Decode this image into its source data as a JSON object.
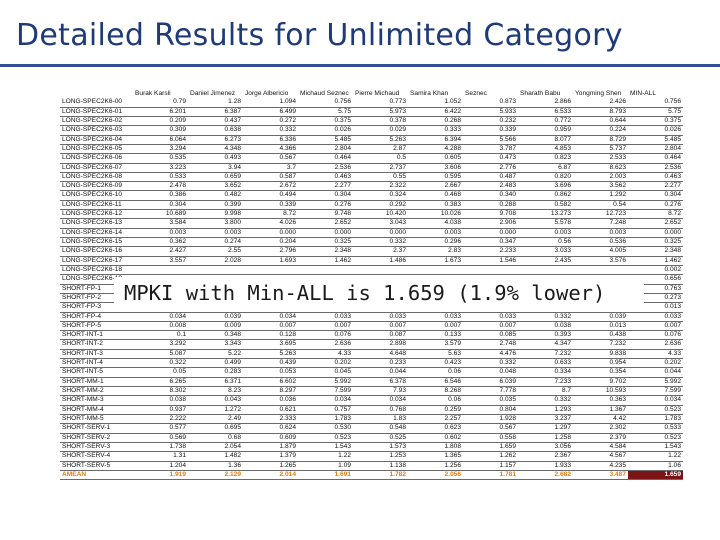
{
  "title": "Detailed Results for Unlimited Category",
  "callout": "MPKI with Min-ALL is 1.659 (1.9% lower)",
  "table": {
    "columns": [
      "",
      "Burak Karsli",
      "Daniel Jimenez",
      "Jorge Albericio",
      "Michaud Seznec",
      "Pierre Michaud",
      "Samira Khan",
      "Seznec",
      "Sharath Babu",
      "Yongming Shen",
      "MIN-ALL"
    ],
    "rows": [
      [
        "LONG-SPEC2K6-00",
        "0.79",
        "1.28",
        "1.094",
        "0.756",
        "0.773",
        "1.052",
        "0.873",
        "2.866",
        "2.426",
        "0.756"
      ],
      [
        "LONG-SPEC2K6-01",
        "6.201",
        "6.387",
        "6.499",
        "5.75",
        "5.973",
        "6.422",
        "5.933",
        "6.533",
        "8.793",
        "5.75"
      ],
      [
        "LONG-SPEC2K6-02",
        "0.209",
        "0.437",
        "0.272",
        "0.375",
        "0.378",
        "0.268",
        "0.232",
        "0.772",
        "0.644",
        "0.375"
      ],
      [
        "LONG-SPEC2K6-03",
        "0.309",
        "0.638",
        "0.332",
        "0.026",
        "0.029",
        "0.333",
        "0.339",
        "0.959",
        "0.224",
        "0.026"
      ],
      [
        "LONG-SPEC2K6-04",
        "6.064",
        "6.273",
        "6.336",
        "5.485",
        "5.263",
        "6.394",
        "5.566",
        "8.077",
        "8.729",
        "5.485"
      ],
      [
        "LONG-SPEC2K6-05",
        "3.294",
        "4.348",
        "4.366",
        "2.804",
        "2.87",
        "4.288",
        "3.787",
        "4.853",
        "5.737",
        "2.804"
      ],
      [
        "LONG-SPEC2K6-06",
        "0.535",
        "0.493",
        "0.567",
        "0.464",
        "0.5",
        "0.605",
        "0.473",
        "0.823",
        "2.533",
        "0.464"
      ],
      [
        "LONG-SPEC2K6-07",
        "3.223",
        "3.94",
        "3.7",
        "2.536",
        "2.737",
        "3.606",
        "2.776",
        "6.87",
        "8.623",
        "2.536"
      ],
      [
        "LONG-SPEC2K6-08",
        "0.533",
        "0.659",
        "0.587",
        "0.463",
        "0.55",
        "0.595",
        "0.487",
        "0.820",
        "2.003",
        "0.463"
      ],
      [
        "LONG-SPEC2K6-09",
        "2.478",
        "3.652",
        "2.672",
        "2.277",
        "2.322",
        "2.667",
        "2.483",
        "3.696",
        "3.562",
        "2.277"
      ],
      [
        "LONG-SPEC2K6-10",
        "0.386",
        "0.482",
        "0.494",
        "0.304",
        "0.324",
        "0.468",
        "0.340",
        "0.862",
        "1.292",
        "0.304"
      ],
      [
        "LONG-SPEC2K6-11",
        "0.304",
        "0.399",
        "0.339",
        "0.276",
        "0.292",
        "0.383",
        "0.288",
        "0.582",
        "0.54",
        "0.276"
      ],
      [
        "LONG-SPEC2K6-12",
        "10.689",
        "9.998",
        "8.72",
        "9.748",
        "10.420",
        "10.026",
        "9.708",
        "13.273",
        "12.723",
        "8.72"
      ],
      [
        "LONG-SPEC2K6-13",
        "3.584",
        "3.800",
        "4.026",
        "2.652",
        "3.043",
        "4.038",
        "2.906",
        "5.578",
        "7.248",
        "2.652"
      ],
      [
        "LONG-SPEC2K6-14",
        "0.003",
        "0.003",
        "0.000",
        "0.000",
        "0.000",
        "0.003",
        "0.000",
        "0.003",
        "0.003",
        "0.000"
      ],
      [
        "LONG-SPEC2K6-15",
        "0.362",
        "0.274",
        "0.204",
        "0.325",
        "0.332",
        "0.296",
        "0.347",
        "0.56",
        "0.536",
        "0.325"
      ],
      [
        "LONG-SPEC2K6-16",
        "2.427",
        "2.55",
        "2.796",
        "2.348",
        "2.37",
        "2.83",
        "2.233",
        "3.033",
        "4.005",
        "2.348"
      ],
      [
        "LONG-SPEC2K6-17",
        "3.557",
        "2.028",
        "1.693",
        "1.462",
        "1.486",
        "1.673",
        "1.546",
        "2.435",
        "3.576",
        "1.462"
      ],
      [
        "LONG-SPEC2K6-18",
        "",
        "",
        "",
        "",
        "",
        "",
        "",
        "",
        "",
        "0.002"
      ],
      [
        "LONG-SPEC2K6-19",
        "",
        "",
        "",
        "",
        "",
        "",
        "",
        "",
        "",
        "0.656"
      ],
      [
        "SHORT-FP-1",
        "",
        "",
        "",
        "",
        "",
        "",
        "",
        "",
        "",
        "0.763"
      ],
      [
        "SHORT-FP-2",
        "",
        "",
        "",
        "",
        "",
        "",
        "",
        "",
        "",
        "0.273"
      ],
      [
        "SHORT-FP-3",
        "0.034",
        "0.025",
        "0.013",
        "0.013",
        "0.013",
        "0.013",
        "0.013",
        "0.309",
        "0.042",
        "0.013"
      ],
      [
        "SHORT-FP-4",
        "0.034",
        "0.039",
        "0.034",
        "0.033",
        "0.033",
        "0.033",
        "0.033",
        "0.332",
        "0.039",
        "0.033"
      ],
      [
        "SHORT-FP-5",
        "0.008",
        "0.009",
        "0.007",
        "0.007",
        "0.007",
        "0.007",
        "0.007",
        "0.038",
        "0.013",
        "0.007"
      ],
      [
        "SHORT-INT-1",
        "0.1",
        "0.348",
        "0.128",
        "0.076",
        "0.087",
        "0.133",
        "0.085",
        "0.393",
        "0.438",
        "0.076"
      ],
      [
        "SHORT-INT-2",
        "3.292",
        "3.343",
        "3.695",
        "2.636",
        "2.898",
        "3.579",
        "2.748",
        "4.347",
        "7.232",
        "2.636"
      ],
      [
        "SHORT-INT-3",
        "5.087",
        "5.22",
        "5.263",
        "4.33",
        "4.648",
        "5.63",
        "4.476",
        "7.232",
        "9.838",
        "4.33"
      ],
      [
        "SHORT-INT-4",
        "0.322",
        "0.499",
        "0.439",
        "0.202",
        "0.233",
        "0.423",
        "0.332",
        "0.633",
        "0.954",
        "0.202"
      ],
      [
        "SHORT-INT-5",
        "0.05",
        "0.283",
        "0.053",
        "0.045",
        "0.044",
        "0.06",
        "0.048",
        "0.334",
        "0.354",
        "0.044"
      ],
      [
        "SHORT-MM-1",
        "6.265",
        "6.371",
        "6.602",
        "5.992",
        "6.378",
        "6.546",
        "6.039",
        "7.233",
        "9.702",
        "5.992"
      ],
      [
        "SHORT-MM-2",
        "8.302",
        "8.23",
        "8.297",
        "7.599",
        "7.93",
        "8.268",
        "7.778",
        "8.7",
        "10.593",
        "7.599"
      ],
      [
        "SHORT-MM-3",
        "0.038",
        "0.043",
        "0.036",
        "0.034",
        "0.034",
        "0.06",
        "0.035",
        "0.332",
        "0.363",
        "0.034"
      ],
      [
        "SHORT-MM-4",
        "0.937",
        "1.272",
        "0.621",
        "0.757",
        "0.768",
        "0.259",
        "0.804",
        "1.293",
        "1.367",
        "0.523"
      ],
      [
        "SHORT-MM-5",
        "2.222",
        "2.49",
        "2.333",
        "1.783",
        "1.83",
        "2.257",
        "1.928",
        "3.237",
        "4.42",
        "1.783"
      ],
      [
        "SHORT-SERV-1",
        "0.577",
        "0.695",
        "0.624",
        "0.530",
        "0.548",
        "0.623",
        "0.567",
        "1.297",
        "2.302",
        "0.533"
      ],
      [
        "SHORT-SERV-2",
        "0.569",
        "0.68",
        "0.609",
        "0.523",
        "0.525",
        "0.602",
        "0.558",
        "1.258",
        "2.379",
        "0.523"
      ],
      [
        "SHORT-SERV-3",
        "1.738",
        "2.054",
        "1.879",
        "1.543",
        "1.573",
        "1.808",
        "1.659",
        "3.056",
        "4.584",
        "1.543"
      ],
      [
        "SHORT-SERV-4",
        "1.31",
        "1.482",
        "1.379",
        "1.22",
        "1.253",
        "1.365",
        "1.262",
        "2.367",
        "4.567",
        "1.22"
      ],
      [
        "SHORT-SERV-5",
        "1.204",
        "1.36",
        "1.265",
        "1.09",
        "1.138",
        "1.256",
        "1.157",
        "1.933",
        "4.235",
        "1.06"
      ]
    ],
    "amean": [
      "AMEAN",
      "1.919",
      "2.129",
      "2.014",
      "1.691",
      "1.782",
      "2.056",
      "1.781",
      "2.682",
      "3.487",
      "1.659"
    ]
  }
}
